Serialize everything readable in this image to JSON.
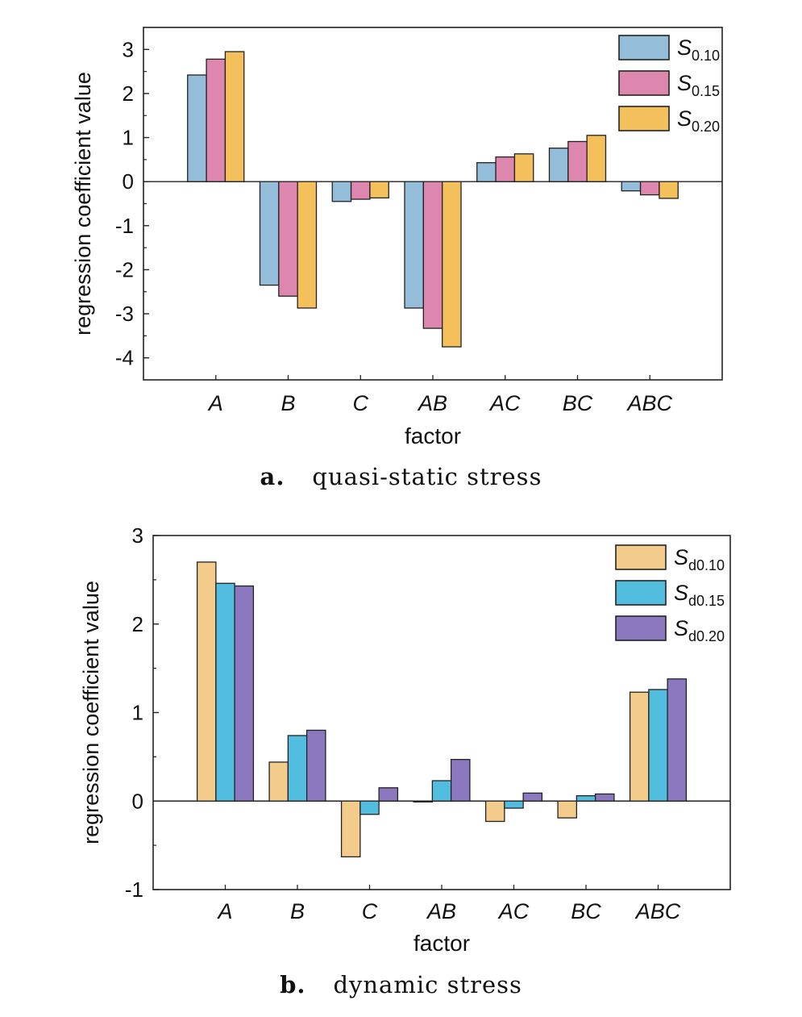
{
  "captions": [
    {
      "letter": "a.",
      "text": "quasi-static stress"
    },
    {
      "letter": "b.",
      "text": "dynamic stress"
    }
  ],
  "chart_data": [
    {
      "type": "bar",
      "xlabel": "factor",
      "ylabel": "regression coefficient value",
      "ylim": [
        -4.5,
        3.5
      ],
      "yticks": [
        -4,
        -3,
        -2,
        -1,
        0,
        1,
        2,
        3
      ],
      "categories": [
        "A",
        "B",
        "C",
        "AB",
        "AC",
        "BC",
        "ABC"
      ],
      "legend_position": "top-right",
      "grid": false,
      "series": [
        {
          "name": "S",
          "subscript": "0.10",
          "color": "#93bdd9",
          "values": [
            2.42,
            -2.35,
            -0.45,
            -2.87,
            0.43,
            0.76,
            -0.21
          ]
        },
        {
          "name": "S",
          "subscript": "0.15",
          "color": "#dd86ae",
          "values": [
            2.78,
            -2.6,
            -0.4,
            -3.33,
            0.56,
            0.91,
            -0.3
          ]
        },
        {
          "name": "S",
          "subscript": "0.20",
          "color": "#f3c05c",
          "values": [
            2.95,
            -2.87,
            -0.37,
            -3.75,
            0.63,
            1.05,
            -0.38
          ]
        }
      ]
    },
    {
      "type": "bar",
      "xlabel": "factor",
      "ylabel": "regression coefficient value",
      "ylim": [
        -1,
        3
      ],
      "yticks": [
        -1,
        0,
        1,
        2,
        3
      ],
      "categories": [
        "A",
        "B",
        "C",
        "AB",
        "AC",
        "BC",
        "ABC"
      ],
      "legend_position": "top-right",
      "grid": false,
      "series": [
        {
          "name": "S",
          "subscript": "d0.10",
          "color": "#f3cc8c",
          "values": [
            2.7,
            0.44,
            -0.63,
            -0.01,
            -0.23,
            -0.19,
            1.23
          ]
        },
        {
          "name": "S",
          "subscript": "d0.15",
          "color": "#53bde0",
          "values": [
            2.46,
            0.74,
            -0.15,
            0.23,
            -0.08,
            0.06,
            1.26
          ]
        },
        {
          "name": "S",
          "subscript": "d0.20",
          "color": "#8c78bf",
          "values": [
            2.43,
            0.8,
            0.15,
            0.47,
            0.09,
            0.08,
            1.38
          ]
        }
      ]
    }
  ]
}
